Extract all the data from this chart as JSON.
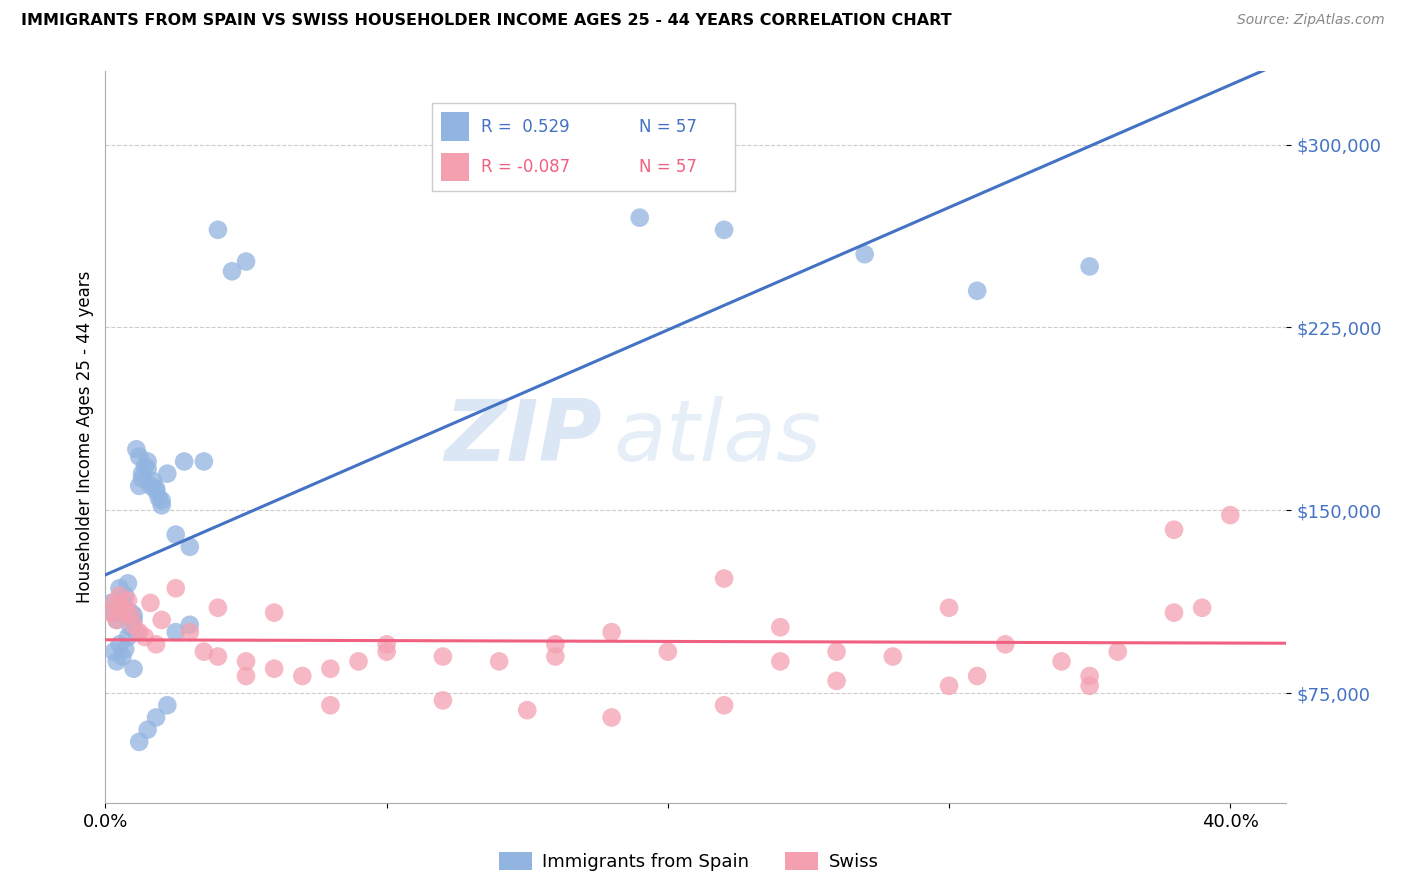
{
  "title": "IMMIGRANTS FROM SPAIN VS SWISS HOUSEHOLDER INCOME AGES 25 - 44 YEARS CORRELATION CHART",
  "source": "Source: ZipAtlas.com",
  "ylabel": "Householder Income Ages 25 - 44 years",
  "yticks": [
    75000,
    150000,
    225000,
    300000
  ],
  "ytick_labels": [
    "$75,000",
    "$150,000",
    "$225,000",
    "$300,000"
  ],
  "xmin": 0.0,
  "xmax": 0.42,
  "ymin": 30000,
  "ymax": 330000,
  "legend_r_blue": "R =  0.529",
  "legend_n_blue": "N = 57",
  "legend_r_pink": "R = -0.087",
  "legend_n_pink": "N = 57",
  "legend_label_blue": "Immigrants from Spain",
  "legend_label_pink": "Swiss",
  "blue_color": "#92B4E0",
  "pink_color": "#F4A0B0",
  "blue_line_color": "#4472C4",
  "pink_line_color": "#F06080",
  "ytick_color": "#4472C4",
  "watermark_zip": "ZIP",
  "watermark_atlas": "atlas",
  "blue_scatter_x": [
    0.002,
    0.003,
    0.004,
    0.005,
    0.006,
    0.007,
    0.008,
    0.009,
    0.01,
    0.011,
    0.012,
    0.013,
    0.014,
    0.015,
    0.016,
    0.017,
    0.018,
    0.019,
    0.02,
    0.022,
    0.025,
    0.028,
    0.03,
    0.035,
    0.04,
    0.045,
    0.05,
    0.003,
    0.004,
    0.005,
    0.006,
    0.007,
    0.008,
    0.009,
    0.01,
    0.011,
    0.012,
    0.013,
    0.015,
    0.018,
    0.02,
    0.005,
    0.006,
    0.007,
    0.008,
    0.01,
    0.012,
    0.015,
    0.018,
    0.022,
    0.025,
    0.03,
    0.19,
    0.22,
    0.27,
    0.31,
    0.35
  ],
  "blue_scatter_y": [
    112000,
    108000,
    105000,
    118000,
    110000,
    115000,
    120000,
    108000,
    105000,
    100000,
    172000,
    165000,
    168000,
    170000,
    160000,
    162000,
    158000,
    155000,
    152000,
    165000,
    140000,
    170000,
    135000,
    170000,
    265000,
    248000,
    252000,
    92000,
    88000,
    95000,
    90000,
    93000,
    98000,
    102000,
    107000,
    175000,
    160000,
    163000,
    167000,
    159000,
    154000,
    108000,
    112000,
    110000,
    107000,
    85000,
    55000,
    60000,
    65000,
    70000,
    100000,
    103000,
    270000,
    265000,
    255000,
    240000,
    250000
  ],
  "pink_scatter_x": [
    0.002,
    0.003,
    0.004,
    0.005,
    0.006,
    0.007,
    0.008,
    0.009,
    0.01,
    0.012,
    0.014,
    0.016,
    0.018,
    0.02,
    0.025,
    0.03,
    0.035,
    0.04,
    0.05,
    0.06,
    0.07,
    0.08,
    0.09,
    0.1,
    0.12,
    0.14,
    0.16,
    0.18,
    0.2,
    0.22,
    0.24,
    0.26,
    0.28,
    0.3,
    0.32,
    0.34,
    0.36,
    0.38,
    0.4,
    0.05,
    0.08,
    0.12,
    0.15,
    0.18,
    0.22,
    0.26,
    0.3,
    0.35,
    0.38,
    0.04,
    0.06,
    0.1,
    0.16,
    0.24,
    0.31,
    0.35,
    0.39
  ],
  "pink_scatter_y": [
    108000,
    112000,
    105000,
    115000,
    110000,
    108000,
    113000,
    107000,
    103000,
    100000,
    98000,
    112000,
    95000,
    105000,
    118000,
    100000,
    92000,
    90000,
    88000,
    85000,
    82000,
    85000,
    88000,
    92000,
    90000,
    88000,
    95000,
    100000,
    92000,
    122000,
    102000,
    92000,
    90000,
    110000,
    95000,
    88000,
    92000,
    108000,
    148000,
    82000,
    70000,
    72000,
    68000,
    65000,
    70000,
    80000,
    78000,
    82000,
    142000,
    110000,
    108000,
    95000,
    90000,
    88000,
    82000,
    78000,
    110000
  ]
}
